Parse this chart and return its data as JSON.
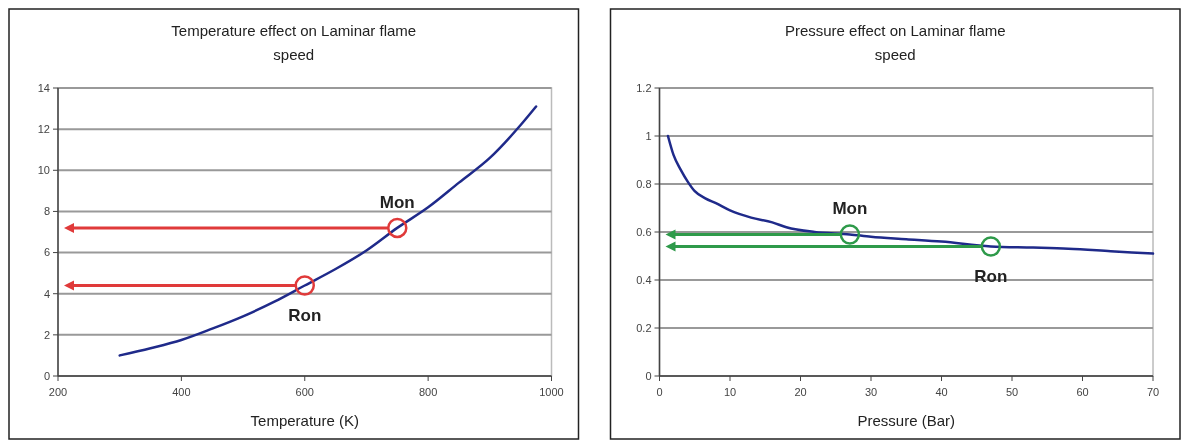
{
  "chart_data": [
    {
      "type": "line",
      "title": "Temperature effect on Laminar flame speed",
      "xlabel": "Temperature (K)",
      "xlim": [
        200,
        1000
      ],
      "xticks": [
        200,
        400,
        600,
        800,
        1000
      ],
      "ylim": [
        0,
        14
      ],
      "yticks": [
        0,
        2,
        4,
        6,
        8,
        10,
        12,
        14
      ],
      "grid": "y",
      "series": [
        {
          "color": "#1f2a8a",
          "marker": "none",
          "line_style": "solid",
          "x": [
            300,
            350,
            400,
            450,
            500,
            550,
            600,
            650,
            700,
            750,
            800,
            850,
            900,
            950,
            975
          ],
          "values": [
            1,
            1.35,
            1.75,
            2.3,
            2.9,
            3.6,
            4.4,
            5.2,
            6.1,
            7.2,
            8.2,
            9.4,
            10.6,
            12.2,
            13.1
          ]
        },
        {
          "type": "scatter",
          "color": "#e03a3a",
          "marker": "circle",
          "x": [
            600,
            750
          ],
          "values": [
            4.4,
            7.2
          ]
        }
      ],
      "annotations": [
        {
          "text": "Mon",
          "x": 750,
          "y": 7.2
        },
        {
          "text": "Ron",
          "x": 600,
          "y": 4.4
        }
      ]
    },
    {
      "type": "line",
      "title": "Pressure effect on Laminar flame speed",
      "xlabel": "Pressure (Bar)",
      "xlim": [
        0,
        70
      ],
      "xticks": [
        0,
        10,
        20,
        30,
        40,
        50,
        60,
        70
      ],
      "ylim": [
        0,
        1.2
      ],
      "yticks": [
        0,
        0.2,
        0.4,
        0.6,
        0.8,
        1,
        1.2
      ],
      "grid": "y",
      "series": [
        {
          "color": "#1f2a8a",
          "marker": "none",
          "line_style": "solid",
          "x": [
            1.2,
            2,
            3,
            4,
            5,
            6.5,
            8,
            10,
            13,
            16,
            18,
            22,
            27,
            30,
            35,
            40,
            47,
            53,
            58,
            64,
            70
          ],
          "values": [
            1,
            0.92,
            0.86,
            0.81,
            0.77,
            0.74,
            0.72,
            0.69,
            0.66,
            0.64,
            0.62,
            0.6,
            0.59,
            0.58,
            0.57,
            0.56,
            0.54,
            0.535,
            0.53,
            0.52,
            0.51
          ]
        },
        {
          "type": "scatter",
          "color": "#2e9a4a",
          "marker": "circle",
          "x": [
            27,
            47
          ],
          "values": [
            0.59,
            0.54
          ]
        }
      ],
      "annotations": [
        {
          "text": "Mon",
          "x": 27,
          "y": 0.59
        },
        {
          "text": "Ron",
          "x": 47,
          "y": 0.54
        }
      ]
    }
  ]
}
